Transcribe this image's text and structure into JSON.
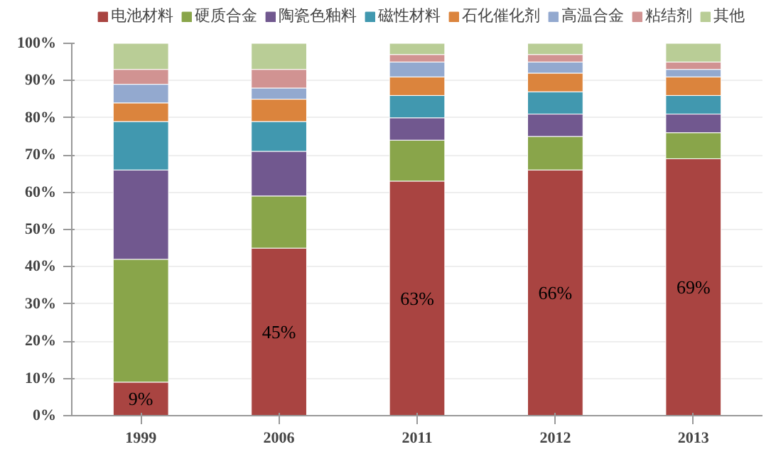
{
  "chart_data": {
    "type": "bar",
    "stacked": true,
    "categories": [
      "1999",
      "2006",
      "2011",
      "2012",
      "2013"
    ],
    "series": [
      {
        "name": "电池材料",
        "color": "#a94441",
        "values": [
          9,
          45,
          63,
          66,
          69
        ],
        "value_labels": [
          "9%",
          "45%",
          "63%",
          "66%",
          "69%"
        ]
      },
      {
        "name": "硬质合金",
        "color": "#89a54a",
        "values": [
          33,
          14,
          11,
          9,
          7
        ]
      },
      {
        "name": "陶瓷色釉料",
        "color": "#71588f",
        "values": [
          24,
          12,
          6,
          6,
          5
        ]
      },
      {
        "name": "磁性材料",
        "color": "#4198af",
        "values": [
          13,
          8,
          6,
          6,
          5
        ]
      },
      {
        "name": "石化催化剂",
        "color": "#db843d",
        "values": [
          5,
          6,
          5,
          5,
          5
        ]
      },
      {
        "name": "高温合金",
        "color": "#93a9cf",
        "values": [
          5,
          3,
          4,
          3,
          2
        ]
      },
      {
        "name": "粘结剂",
        "color": "#d19392",
        "values": [
          4,
          5,
          2,
          2,
          2
        ]
      },
      {
        "name": "其他",
        "color": "#b9cd96",
        "values": [
          7,
          7,
          3,
          3,
          5
        ]
      }
    ],
    "ylim": [
      0,
      100
    ],
    "yticks": [
      {
        "value": 0,
        "label": "0%"
      },
      {
        "value": 10,
        "label": "10%"
      },
      {
        "value": 20,
        "label": "20%"
      },
      {
        "value": 30,
        "label": "30%"
      },
      {
        "value": 40,
        "label": "40%"
      },
      {
        "value": 50,
        "label": "50%"
      },
      {
        "value": 60,
        "label": "60%"
      },
      {
        "value": 70,
        "label": "70%"
      },
      {
        "value": 80,
        "label": "80%"
      },
      {
        "value": 90,
        "label": "90%"
      },
      {
        "value": 100,
        "label": "100%"
      }
    ],
    "grid": "y",
    "legend": "top"
  }
}
